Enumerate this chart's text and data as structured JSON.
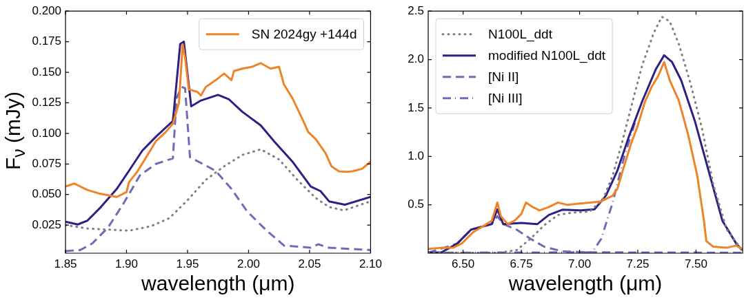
{
  "chart_data": [
    {
      "type": "line",
      "xlabel": "wavelength (μm)",
      "ylabel": "F$_{ν}$ (mJy)",
      "xlim": [
        1.85,
        2.1
      ],
      "ylim": [
        0.002,
        0.2
      ],
      "xticks": [
        1.85,
        {
          "value": 1.9,
          "label": "1.90"
        },
        1.95,
        {
          "value": 2.0,
          "label": "2.00"
        },
        2.05,
        {
          "value": 2.1,
          "label": "2.10"
        }
      ],
      "yticks": [
        0.025,
        {
          "value": 0.05,
          "label": "0.050"
        },
        0.075,
        {
          "value": 0.1,
          "label": "0.100"
        },
        0.125,
        {
          "value": 0.15,
          "label": "0.150"
        },
        0.175,
        {
          "value": 0.2,
          "label": "0.200"
        }
      ],
      "grid": false,
      "legend": "top right",
      "series": [
        {
          "name": "SN 2024gy +144d",
          "color": "#ee8427",
          "line_style": "solid",
          "x": [
            1.85,
            1.857,
            1.868,
            1.877,
            1.887,
            1.892,
            1.9,
            1.902,
            1.909,
            1.917,
            1.924,
            1.932,
            1.938,
            1.943,
            1.946,
            1.948,
            1.951,
            1.958,
            1.961,
            1.965,
            1.973,
            1.98,
            1.986,
            1.988,
            1.995,
            2.003,
            2.01,
            2.018,
            2.025,
            2.029,
            2.036,
            2.044,
            2.049,
            2.055,
            2.063,
            2.068,
            2.074,
            2.081,
            2.085,
            2.093,
            2.1
          ],
          "values": [
            0.0565,
            0.059,
            0.0537,
            0.051,
            0.049,
            0.048,
            0.052,
            0.06,
            0.069,
            0.082,
            0.0935,
            0.101,
            0.108,
            0.125,
            0.173,
            0.162,
            0.136,
            0.134,
            0.131,
            0.138,
            0.1435,
            0.149,
            0.1435,
            0.151,
            0.153,
            0.1545,
            0.1575,
            0.153,
            0.1545,
            0.14,
            0.1287,
            0.112,
            0.101,
            0.0954,
            0.084,
            0.073,
            0.069,
            0.0685,
            0.069,
            0.071,
            0.0769
          ]
        },
        {
          "color": "#808080",
          "line_style": "dotted",
          "x": [
            1.85,
            1.868,
            1.902,
            1.92,
            1.935,
            1.95,
            1.965,
            1.98,
            1.995,
            2.01,
            2.025,
            2.04,
            2.055,
            2.066,
            2.078,
            2.1
          ],
          "values": [
            0.025,
            0.0222,
            0.0204,
            0.0241,
            0.0306,
            0.0454,
            0.062,
            0.0731,
            0.0824,
            0.087,
            0.0787,
            0.062,
            0.0472,
            0.0398,
            0.037,
            0.0444
          ]
        },
        {
          "color": "#2e1f85",
          "line_style": "solid",
          "x": [
            1.85,
            1.86,
            1.868,
            1.879,
            1.892,
            1.902,
            1.913,
            1.924,
            1.938,
            1.944,
            1.947,
            1.953,
            1.961,
            1.975,
            1.984,
            1.995,
            2.01,
            2.021,
            2.036,
            2.051,
            2.059,
            2.066,
            2.079,
            2.1
          ],
          "values": [
            0.0278,
            0.0255,
            0.0287,
            0.0398,
            0.0546,
            0.0694,
            0.086,
            0.0972,
            0.1102,
            0.1731,
            0.175,
            0.1222,
            0.1269,
            0.1315,
            0.1278,
            0.1176,
            0.1065,
            0.0935,
            0.0769,
            0.0565,
            0.0528,
            0.0444,
            0.0417,
            0.0481
          ]
        },
        {
          "color": "#7468b8",
          "line_style": "dashed",
          "x": [
            1.85,
            1.862,
            1.872,
            1.885,
            1.898,
            1.911,
            1.924,
            1.938,
            1.941,
            1.945,
            1.948,
            1.952,
            1.973,
            1.986,
            1.999,
            2.014,
            2.029,
            2.051,
            2.057,
            2.066,
            2.1
          ],
          "values": [
            0.0037,
            0.0046,
            0.01,
            0.0232,
            0.0435,
            0.0657,
            0.075,
            0.0796,
            0.1287,
            0.138,
            0.137,
            0.0806,
            0.0694,
            0.0546,
            0.036,
            0.0213,
            0.0083,
            0.0065,
            0.0093,
            0.0065,
            0.0046
          ]
        }
      ]
    },
    {
      "type": "line",
      "xlabel": "wavelength (μm)",
      "xlim": [
        6.35,
        7.7
      ],
      "ylim": [
        0,
        2.5
      ],
      "xticks": [
        {
          "value": 6.5,
          "label": "6.50"
        },
        6.75,
        {
          "value": 7.0,
          "label": "7.00"
        },
        7.25,
        {
          "value": 7.5,
          "label": "7.50"
        }
      ],
      "yticks": [
        0.5,
        {
          "value": 1.0,
          "label": "1.0"
        },
        1.5,
        {
          "value": 2.0,
          "label": "2.0"
        },
        2.5
      ],
      "grid": false,
      "legend": "top left",
      "series": [
        {
          "color": "#ee8427",
          "line_style": "solid",
          "x": [
            6.35,
            6.407,
            6.456,
            6.495,
            6.544,
            6.593,
            6.623,
            6.647,
            6.662,
            6.691,
            6.721,
            6.75,
            6.77,
            6.799,
            6.828,
            6.868,
            6.907,
            6.946,
            6.995,
            7.044,
            7.093,
            7.142,
            7.162,
            7.191,
            7.221,
            7.25,
            7.279,
            7.309,
            7.338,
            7.363,
            7.387,
            7.426,
            7.466,
            7.505,
            7.534,
            7.544,
            7.574,
            7.632,
            7.672,
            7.698
          ],
          "values": [
            0.044,
            0.056,
            0.056,
            0.102,
            0.219,
            0.289,
            0.336,
            0.523,
            0.383,
            0.301,
            0.336,
            0.406,
            0.523,
            0.477,
            0.442,
            0.477,
            0.523,
            0.5,
            0.512,
            0.523,
            0.535,
            0.594,
            0.664,
            0.898,
            1.131,
            1.319,
            1.553,
            1.716,
            1.833,
            1.974,
            1.787,
            1.576,
            1.225,
            0.804,
            0.336,
            0.126,
            0.067,
            0.056,
            0.079,
            0.044
          ]
        },
        {
          "name": "N100L_ddt",
          "color": "#808080",
          "line_style": "dotted",
          "x": [
            6.35,
            6.652,
            6.73,
            6.789,
            6.848,
            6.907,
            6.966,
            7.044,
            7.103,
            7.142,
            7.181,
            7.221,
            7.27,
            7.319,
            7.353,
            7.387,
            7.426,
            7.475,
            7.525,
            7.574,
            7.632,
            7.698
          ],
          "values": [
            0.005,
            0.005,
            0.032,
            0.149,
            0.289,
            0.395,
            0.418,
            0.43,
            0.57,
            0.804,
            1.131,
            1.506,
            1.95,
            2.278,
            2.442,
            2.395,
            2.161,
            1.763,
            1.295,
            0.711,
            0.243,
            0.032
          ]
        },
        {
          "name": "modified N100L_ddt",
          "color": "#2e1f85",
          "line_style": "solid",
          "x": [
            6.35,
            6.407,
            6.475,
            6.534,
            6.623,
            6.647,
            6.672,
            6.75,
            6.819,
            6.868,
            6.926,
            7.005,
            7.064,
            7.113,
            7.162,
            7.211,
            7.27,
            7.328,
            7.363,
            7.397,
            7.436,
            7.495,
            7.554,
            7.613,
            7.672,
            7.698
          ],
          "values": [
            0.005,
            0.009,
            0.1,
            0.243,
            0.301,
            0.453,
            0.301,
            0.313,
            0.301,
            0.395,
            0.449,
            0.442,
            0.453,
            0.594,
            0.851,
            1.2,
            1.576,
            1.903,
            2.044,
            1.974,
            1.787,
            1.365,
            0.851,
            0.336,
            0.102,
            0.032
          ]
        },
        {
          "name": "[Ni II]",
          "color": "#7468b8",
          "line_style": "dashed",
          "x": [
            6.35,
            6.475,
            6.534,
            6.623,
            6.647,
            6.672,
            6.73,
            6.789,
            6.848,
            6.926,
            7.044,
            7.698
          ],
          "values": [
            0.005,
            0.1,
            0.243,
            0.301,
            0.383,
            0.301,
            0.243,
            0.149,
            0.067,
            0.02,
            0.009,
            0.005
          ]
        },
        {
          "name": "[Ni III]",
          "color": "#7468b8",
          "line_style": "dashdot",
          "x": [
            6.35,
            7.054,
            7.093,
            7.142,
            7.191,
            7.24
          ],
          "values": [
            0.005,
            0.009,
            0.149,
            0.523,
            0.991,
            1.366
          ]
        }
      ]
    }
  ]
}
